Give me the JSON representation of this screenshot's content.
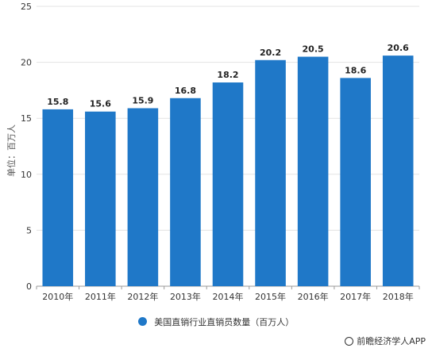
{
  "chart_data": {
    "type": "bar",
    "categories": [
      "2010年",
      "2011年",
      "2012年",
      "2013年",
      "2014年",
      "2015年",
      "2016年",
      "2017年",
      "2018年"
    ],
    "values": [
      15.8,
      15.6,
      15.9,
      16.8,
      18.2,
      20.2,
      20.5,
      18.6,
      20.6
    ],
    "ylabel": "单位：百万人",
    "ylim": [
      0,
      25
    ],
    "yticks": [
      0,
      5,
      10,
      15,
      20,
      25
    ],
    "grid": true,
    "legend_position": "bottom",
    "series": [
      {
        "name": "美国直销行业直销员数量（百万人）",
        "color": "#1f78c8"
      }
    ]
  },
  "source": "前瞻经济学人APP"
}
